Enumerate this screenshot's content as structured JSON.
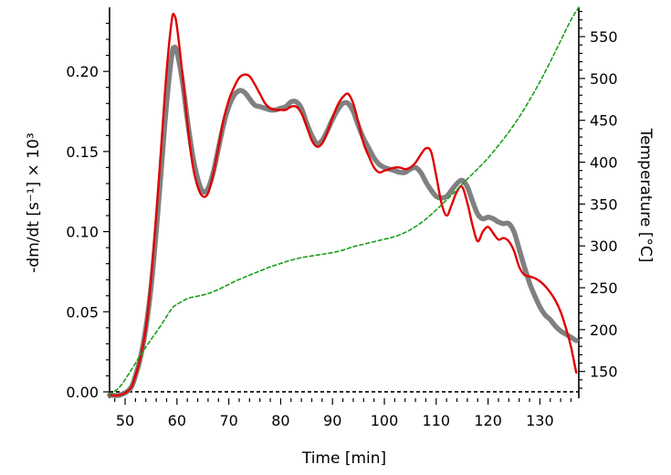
{
  "chart_data": {
    "type": "line",
    "title": "",
    "xlabel": "Time  [min]",
    "ylabel_left": "-dm/dt  [s⁻¹]  ×  10³",
    "ylabel_right": "Temperature  [°C]",
    "xlim": [
      47,
      137.5
    ],
    "ylim_left": [
      -0.004,
      0.24
    ],
    "ylim_right": [
      118,
      585
    ],
    "x_ticks": [
      50,
      60,
      70,
      80,
      90,
      100,
      110,
      120,
      130
    ],
    "y_left_ticks": [
      "0.00",
      "0.05",
      "0.10",
      "0.15",
      "0.20"
    ],
    "y_right_ticks": [
      150,
      200,
      250,
      300,
      350,
      400,
      450,
      500,
      550
    ],
    "baseline": 0,
    "series": [
      {
        "axis": "left",
        "color": "#808080",
        "style": "solid-thick",
        "x": [
          47,
          49,
          51,
          52,
          53,
          54,
          55,
          56,
          57,
          58,
          59,
          59.5,
          60,
          61,
          62,
          63,
          64,
          65,
          66,
          67,
          68,
          69,
          70,
          71,
          72,
          73,
          74,
          75,
          76,
          77,
          78,
          79,
          80,
          81,
          82,
          83,
          84,
          85,
          86,
          87,
          88,
          89,
          90,
          91,
          92,
          93,
          94,
          95,
          96,
          97,
          98,
          99,
          100,
          101,
          102,
          103,
          104,
          105,
          106,
          107,
          108,
          109,
          110,
          111,
          112,
          113,
          114,
          115,
          116,
          117,
          118,
          119,
          120,
          121,
          122,
          123,
          124,
          125,
          126,
          127,
          128,
          129,
          130,
          131,
          132,
          133,
          134,
          135,
          136,
          137
        ],
        "y": [
          -0.002,
          -0.002,
          0.002,
          0.01,
          0.022,
          0.04,
          0.065,
          0.1,
          0.14,
          0.18,
          0.21,
          0.215,
          0.212,
          0.195,
          0.17,
          0.148,
          0.133,
          0.125,
          0.127,
          0.137,
          0.152,
          0.167,
          0.178,
          0.185,
          0.188,
          0.187,
          0.183,
          0.179,
          0.178,
          0.177,
          0.176,
          0.176,
          0.177,
          0.178,
          0.181,
          0.181,
          0.177,
          0.168,
          0.16,
          0.155,
          0.157,
          0.163,
          0.17,
          0.176,
          0.18,
          0.18,
          0.175,
          0.166,
          0.158,
          0.152,
          0.146,
          0.142,
          0.14,
          0.139,
          0.138,
          0.137,
          0.137,
          0.139,
          0.14,
          0.137,
          0.131,
          0.126,
          0.122,
          0.121,
          0.122,
          0.126,
          0.13,
          0.132,
          0.128,
          0.119,
          0.111,
          0.108,
          0.109,
          0.108,
          0.106,
          0.105,
          0.105,
          0.1,
          0.089,
          0.078,
          0.068,
          0.06,
          0.053,
          0.048,
          0.045,
          0.041,
          0.038,
          0.036,
          0.034,
          0.032
        ]
      },
      {
        "axis": "left",
        "color": "#e00000",
        "style": "solid",
        "x": [
          47,
          49,
          51,
          52,
          53,
          54,
          55,
          56,
          57,
          58,
          59,
          59.5,
          60,
          61,
          62,
          63,
          64,
          65,
          66,
          67,
          68,
          69,
          70,
          71,
          72,
          73,
          74,
          75,
          76,
          77,
          78,
          79,
          80,
          81,
          82,
          83,
          84,
          85,
          86,
          87,
          88,
          89,
          90,
          91,
          92,
          93,
          94,
          95,
          96,
          97,
          98,
          99,
          100,
          101,
          102,
          103,
          104,
          105,
          106,
          107,
          108,
          109,
          110,
          111,
          112,
          113,
          114,
          115,
          116,
          117,
          118,
          119,
          120,
          121,
          122,
          123,
          124,
          125,
          126,
          127,
          128,
          129,
          130,
          131,
          132,
          133,
          134,
          135,
          136,
          137
        ],
        "y": [
          -0.002,
          -0.002,
          0.002,
          0.01,
          0.022,
          0.04,
          0.07,
          0.11,
          0.155,
          0.2,
          0.232,
          0.235,
          0.228,
          0.2,
          0.168,
          0.142,
          0.128,
          0.122,
          0.124,
          0.136,
          0.153,
          0.17,
          0.182,
          0.19,
          0.196,
          0.198,
          0.197,
          0.192,
          0.186,
          0.18,
          0.177,
          0.176,
          0.176,
          0.176,
          0.178,
          0.178,
          0.174,
          0.166,
          0.157,
          0.153,
          0.155,
          0.162,
          0.171,
          0.179,
          0.184,
          0.186,
          0.18,
          0.168,
          0.155,
          0.147,
          0.14,
          0.137,
          0.138,
          0.139,
          0.14,
          0.14,
          0.139,
          0.14,
          0.143,
          0.148,
          0.152,
          0.15,
          0.135,
          0.118,
          0.11,
          0.117,
          0.125,
          0.128,
          0.118,
          0.104,
          0.094,
          0.1,
          0.103,
          0.099,
          0.095,
          0.096,
          0.094,
          0.088,
          0.078,
          0.073,
          0.072,
          0.071,
          0.069,
          0.066,
          0.062,
          0.057,
          0.05,
          0.04,
          0.028,
          0.012
        ]
      },
      {
        "axis": "right",
        "color": "#1a9e1a",
        "style": "dashed",
        "x": [
          47,
          49,
          51,
          53,
          55,
          57,
          59,
          60,
          62,
          64,
          66,
          68,
          70,
          72,
          74,
          76,
          78,
          80,
          82,
          84,
          86,
          88,
          90,
          92,
          94,
          96,
          98,
          100,
          102,
          104,
          106,
          108,
          110,
          112,
          114,
          116,
          118,
          120,
          122,
          124,
          126,
          128,
          130,
          132,
          134,
          136,
          137.5
        ],
        "y": [
          122,
          132,
          150,
          170,
          188,
          206,
          225,
          230,
          237,
          240,
          243,
          248,
          254,
          260,
          265,
          270,
          275,
          279,
          283,
          286,
          288,
          290,
          292,
          295,
          299,
          302,
          305,
          308,
          311,
          316,
          323,
          332,
          343,
          355,
          367,
          380,
          392,
          405,
          420,
          436,
          454,
          474,
          496,
          520,
          545,
          570,
          585
        ]
      }
    ]
  }
}
